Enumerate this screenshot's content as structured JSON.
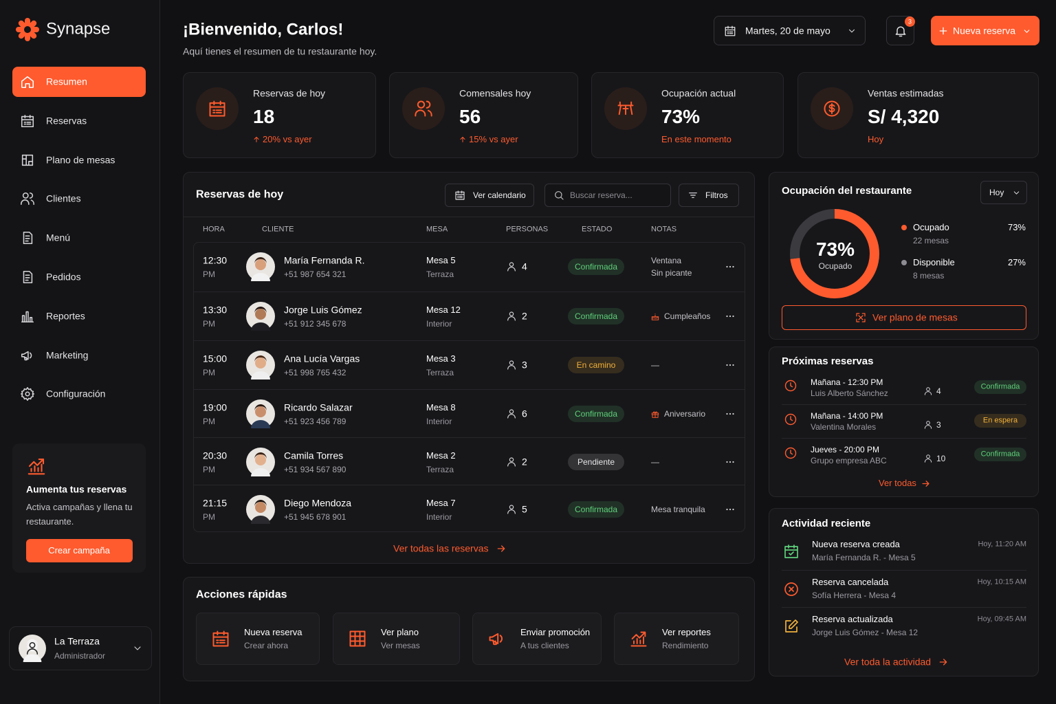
{
  "brand": "Synapse",
  "nav": [
    {
      "label": "Resumen",
      "active": true
    },
    {
      "label": "Reservas",
      "active": false
    },
    {
      "label": "Plano de mesas",
      "active": false
    },
    {
      "label": "Clientes",
      "active": false
    },
    {
      "label": "Menú",
      "active": false
    },
    {
      "label": "Pedidos",
      "active": false
    },
    {
      "label": "Reportes",
      "active": false
    },
    {
      "label": "Marketing",
      "active": false
    },
    {
      "label": "Configuración",
      "active": false
    }
  ],
  "promo": {
    "title": "Aumenta tus reservas",
    "text": "Activa campañas y llena tu restaurante.",
    "button": "Crear campaña"
  },
  "user": {
    "name": "La Terraza",
    "role": "Administrador"
  },
  "header": {
    "title": "¡Bienvenido, Carlos!",
    "subtitle": "Aquí tienes el resumen de tu restaurante hoy.",
    "date": "Martes, 20 de mayo",
    "notifications": 3,
    "new_button": "Nueva reserva"
  },
  "stats": [
    {
      "label": "Reservas de hoy",
      "value": 18,
      "note": "20% vs ayer"
    },
    {
      "label": "Comensales hoy",
      "value": 56,
      "note": "15% vs ayer"
    },
    {
      "label": "Ocupación actual",
      "value": "73%",
      "note": "En este momento"
    },
    {
      "label": "Ventas estimadas",
      "value": "S/ 4,320",
      "note": "Hoy"
    }
  ],
  "reservations": {
    "title": "Reservas de hoy",
    "calendar_button": "Ver calendario",
    "search_placeholder": "Buscar reserva...",
    "filter_button": "Filtros",
    "columns": [
      "HORA",
      "CLIENTE",
      "MESA",
      "PERSONAS",
      "ESTADO",
      "NOTAS"
    ],
    "rows": [
      {
        "time": "12:30",
        "period": "PM",
        "name": "María Fernanda R.",
        "phone": "+51 987 654 321",
        "table": "Mesa 5",
        "area": "Terraza",
        "people": 4,
        "status": "Confirmada",
        "status_color": "#5fd07a",
        "notes": [
          "Ventana",
          "Sin picante"
        ]
      },
      {
        "time": "13:30",
        "period": "PM",
        "name": "Jorge Luis Gómez",
        "phone": "+51 912 345 678",
        "table": "Mesa 12",
        "area": "Interior",
        "people": 2,
        "status": "Confirmada",
        "status_color": "#5fd07a",
        "notes": [
          "Cumpleaños"
        ]
      },
      {
        "time": "15:00",
        "period": "PM",
        "name": "Ana Lucía Vargas",
        "phone": "+51 998 765 432",
        "table": "Mesa 3",
        "area": "Terraza",
        "people": 3,
        "status": "En camino",
        "status_color": "#f2b13a",
        "notes": [
          "—"
        ]
      },
      {
        "time": "19:00",
        "period": "PM",
        "name": "Ricardo Salazar",
        "phone": "+51 923 456 789",
        "table": "Mesa 8",
        "area": "Interior",
        "people": 6,
        "status": "Confirmada",
        "status_color": "#5fd07a",
        "notes": [
          "Aniversario"
        ]
      },
      {
        "time": "20:30",
        "period": "PM",
        "name": "Camila Torres",
        "phone": "+51 934 567 890",
        "table": "Mesa 2",
        "area": "Terraza",
        "people": 2,
        "status": "Pendiente",
        "status_color": "#e4e4e7",
        "notes": [
          "—"
        ]
      },
      {
        "time": "21:15",
        "period": "PM",
        "name": "Diego Mendoza",
        "phone": "+51 945 678 901",
        "table": "Mesa 7",
        "area": "Interior",
        "people": 5,
        "status": "Confirmada",
        "status_color": "#5fd07a",
        "notes": [
          "Mesa tranquila"
        ]
      }
    ],
    "footer_link": "Ver todas las reservas"
  },
  "occupancy": {
    "title": "Ocupación del restaurante",
    "period": "Hoy",
    "segments": [
      {
        "name": "Ocupado",
        "detail": "22 mesas",
        "value": 73,
        "label": "73%",
        "color": "#ff5b2e"
      },
      {
        "name": "Disponible",
        "detail": "8 mesas",
        "value": 27,
        "label": "27%",
        "color": "#3a3a3f"
      }
    ],
    "button": "Ver plano de mesas"
  },
  "upcoming": {
    "title": "Próximas reservas",
    "items": [
      {
        "when": "Mañana - 12:30 PM",
        "name": "Luis Alberto Sánchez",
        "people": 4,
        "status": "Confirmada",
        "status_color": "#5fd07a"
      },
      {
        "when": "Mañana - 14:00 PM",
        "name": "Valentina Morales",
        "people": 3,
        "status": "En espera",
        "status_color": "#f2b13a"
      },
      {
        "when": "Jueves - 20:00 PM",
        "name": "Grupo empresa ABC",
        "people": 10,
        "status": "Confirmada",
        "status_color": "#5fd07a"
      }
    ],
    "link": "Ver todas"
  },
  "activity": {
    "title": "Actividad reciente",
    "items": [
      {
        "title": "Nueva reserva creada",
        "detail": "María Fernanda R. - Mesa 5",
        "time": "Hoy, 11:20 AM",
        "color": "#5fd07a"
      },
      {
        "title": "Reserva cancelada",
        "detail": "Sofía Herrera - Mesa 4",
        "time": "Hoy, 10:15 AM",
        "color": "#ff5b2e"
      },
      {
        "title": "Reserva actualizada",
        "detail": "Jorge Luis Gómez - Mesa 12",
        "time": "Hoy, 09:45 AM",
        "color": "#f2b13a"
      }
    ],
    "link": "Ver toda la actividad"
  },
  "quick_actions": {
    "title": "Acciones rápidas",
    "items": [
      {
        "title": "Nueva reserva",
        "sub": "Crear ahora"
      },
      {
        "title": "Ver plano",
        "sub": "Ver mesas"
      },
      {
        "title": "Enviar promoción",
        "sub": "A tus clientes"
      },
      {
        "title": "Ver reportes",
        "sub": "Rendimiento"
      }
    ]
  }
}
